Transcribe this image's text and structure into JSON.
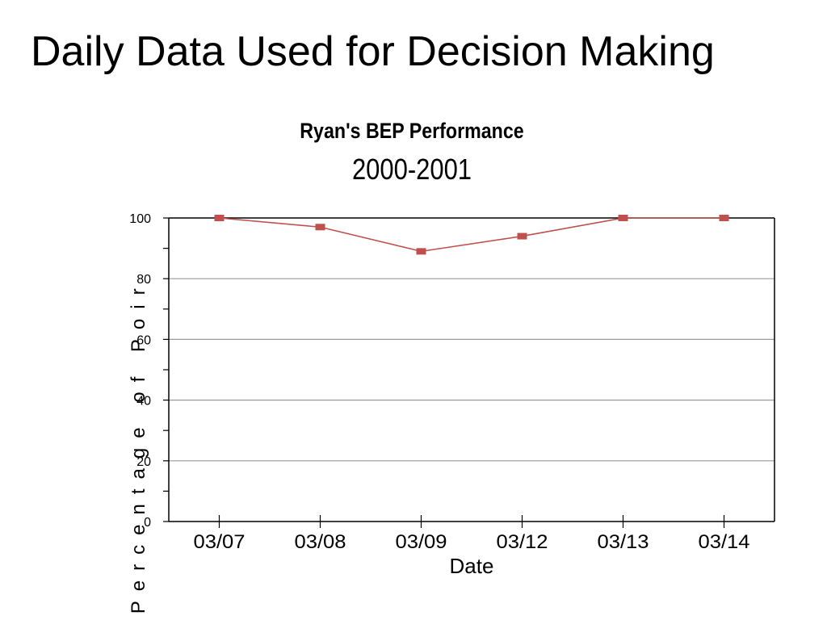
{
  "slide": {
    "title": "Daily Data Used for Decision Making"
  },
  "chart_data": {
    "type": "line",
    "title": "Ryan's BEP Performance",
    "subtitle": "2000-2001",
    "xlabel": "Date",
    "ylabel": "Percentage of Poir",
    "categories": [
      "03/07",
      "03/08",
      "03/09",
      "03/12",
      "03/13",
      "03/14"
    ],
    "series": [
      {
        "values": [
          100,
          97,
          89,
          94,
          100,
          100
        ],
        "color": "#c0504d"
      }
    ],
    "ylim": [
      0,
      100
    ],
    "yticks": [
      0,
      20,
      40,
      60,
      80,
      100
    ],
    "grid": true,
    "legend": "none"
  }
}
